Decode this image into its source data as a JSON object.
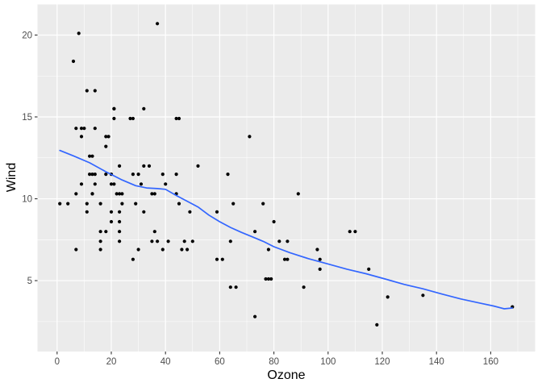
{
  "figure": {
    "background": "#FFFFFF"
  },
  "chart_data": {
    "type": "scatter",
    "title": "",
    "xlabel": "Ozone",
    "ylabel": "Wind",
    "x_ticks": [
      0,
      20,
      40,
      60,
      80,
      100,
      120,
      140,
      160
    ],
    "x_minor_ticks": [
      10,
      30,
      50,
      70,
      90,
      110,
      130,
      150,
      170
    ],
    "y_ticks": [
      5,
      10,
      15,
      20
    ],
    "y_minor_ticks": [
      2.5,
      7.5,
      12.5,
      17.5
    ],
    "xlim": [
      -7.23,
      176.4
    ],
    "ylim": [
      0.67,
      21.87
    ],
    "grid": true,
    "legend_position": "none",
    "panel_background": "#EBEBEB",
    "grid_color": "#FFFFFF",
    "point_color": "#000000",
    "smooth_line_color": "#3366FF",
    "axis_text_color": "#4D4D4D",
    "axis_title_color": "#000000",
    "tick_mark_color": "#333333",
    "points": [
      [
        41,
        7.4
      ],
      [
        36,
        8
      ],
      [
        12,
        12.6
      ],
      [
        18,
        11.5
      ],
      [
        28,
        14.9
      ],
      [
        23,
        8.6
      ],
      [
        19,
        13.8
      ],
      [
        8,
        20.1
      ],
      [
        7,
        6.9
      ],
      [
        16,
        9.7
      ],
      [
        11,
        9.2
      ],
      [
        14,
        10.9
      ],
      [
        18,
        13.2
      ],
      [
        14,
        11.5
      ],
      [
        34,
        12
      ],
      [
        6,
        18.4
      ],
      [
        30,
        11.5
      ],
      [
        11,
        9.7
      ],
      [
        1,
        9.7
      ],
      [
        11,
        16.6
      ],
      [
        4,
        9.7
      ],
      [
        32,
        12
      ],
      [
        23,
        12
      ],
      [
        45,
        14.9
      ],
      [
        115,
        5.7
      ],
      [
        37,
        7.4
      ],
      [
        29,
        9.7
      ],
      [
        71,
        13.8
      ],
      [
        39,
        11.5
      ],
      [
        23,
        8
      ],
      [
        21,
        14.9
      ],
      [
        37,
        20.7
      ],
      [
        20,
        9.2
      ],
      [
        12,
        11.5
      ],
      [
        13,
        10.3
      ],
      [
        135,
        4.1
      ],
      [
        49,
        9.2
      ],
      [
        32,
        9.2
      ],
      [
        64,
        4.6
      ],
      [
        40,
        10.9
      ],
      [
        77,
        5.1
      ],
      [
        97,
        6.3
      ],
      [
        97,
        5.7
      ],
      [
        85,
        7.4
      ],
      [
        10,
        14.3
      ],
      [
        27,
        14.9
      ],
      [
        7,
        14.3
      ],
      [
        48,
        6.9
      ],
      [
        35,
        10.3
      ],
      [
        61,
        6.3
      ],
      [
        79,
        5.1
      ],
      [
        63,
        11.5
      ],
      [
        16,
        6.9
      ],
      [
        80,
        8.6
      ],
      [
        108,
        8
      ],
      [
        20,
        8.6
      ],
      [
        52,
        12
      ],
      [
        82,
        7.4
      ],
      [
        50,
        7.4
      ],
      [
        64,
        7.4
      ],
      [
        59,
        9.2
      ],
      [
        39,
        6.9
      ],
      [
        9,
        13.8
      ],
      [
        16,
        7.4
      ],
      [
        78,
        6.9
      ],
      [
        35,
        7.4
      ],
      [
        66,
        4.6
      ],
      [
        122,
        4
      ],
      [
        89,
        10.3
      ],
      [
        110,
        8
      ],
      [
        44,
        11.5
      ],
      [
        28,
        11.5
      ],
      [
        65,
        9.7
      ],
      [
        22,
        10.3
      ],
      [
        59,
        6.3
      ],
      [
        23,
        7.4
      ],
      [
        31,
        10.9
      ],
      [
        44,
        10.3
      ],
      [
        21,
        15.5
      ],
      [
        9,
        14.3
      ],
      [
        45,
        9.7
      ],
      [
        168,
        3.4
      ],
      [
        73,
        8
      ],
      [
        76,
        9.7
      ],
      [
        118,
        2.3
      ],
      [
        84,
        6.3
      ],
      [
        85,
        6.3
      ],
      [
        96,
        6.9
      ],
      [
        78,
        5.1
      ],
      [
        73,
        2.8
      ],
      [
        91,
        4.6
      ],
      [
        47,
        7.4
      ],
      [
        32,
        15.5
      ],
      [
        20,
        10.9
      ],
      [
        23,
        10.3
      ],
      [
        21,
        10.9
      ],
      [
        24,
        9.7
      ],
      [
        44,
        14.9
      ],
      [
        21,
        15.5
      ],
      [
        28,
        6.3
      ],
      [
        9,
        10.9
      ],
      [
        13,
        11.5
      ],
      [
        46,
        6.9
      ],
      [
        18,
        13.8
      ],
      [
        13,
        10.3
      ],
      [
        24,
        10.3
      ],
      [
        16,
        8
      ],
      [
        13,
        12.6
      ],
      [
        23,
        9.2
      ],
      [
        36,
        10.3
      ],
      [
        7,
        10.3
      ],
      [
        14,
        16.6
      ],
      [
        30,
        6.9
      ],
      [
        14,
        14.3
      ],
      [
        18,
        8
      ],
      [
        20,
        11.5
      ]
    ],
    "smooth_line": {
      "method": "loess",
      "x": [
        1,
        6,
        12,
        18,
        24,
        29,
        33,
        37,
        40,
        44,
        48,
        52,
        56,
        60,
        64,
        68,
        72,
        76,
        80,
        86,
        93,
        100,
        107,
        114,
        121,
        128,
        135,
        142,
        149,
        156,
        161,
        165,
        168
      ],
      "y": [
        12.95,
        12.62,
        12.2,
        11.65,
        11.15,
        10.8,
        10.66,
        10.62,
        10.58,
        10.2,
        9.85,
        9.5,
        9.0,
        8.6,
        8.25,
        7.95,
        7.68,
        7.4,
        7.07,
        6.7,
        6.33,
        6.02,
        5.7,
        5.42,
        5.1,
        4.77,
        4.5,
        4.18,
        3.88,
        3.63,
        3.45,
        3.28,
        3.33
      ]
    }
  }
}
